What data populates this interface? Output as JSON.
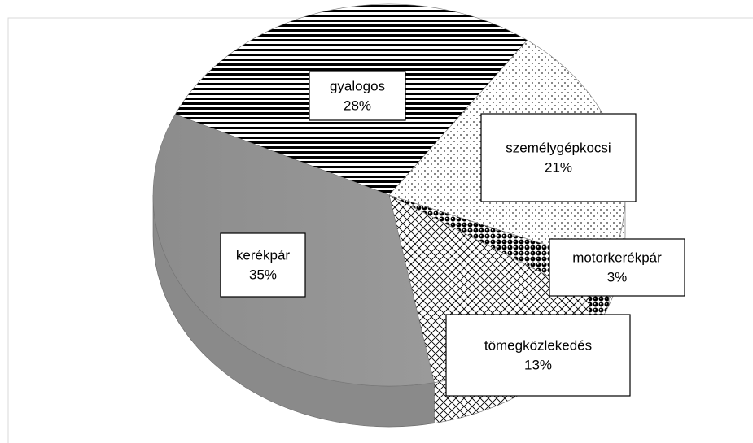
{
  "chart_data": {
    "type": "pie",
    "categories": [
      "gyalogos",
      "személygépkocsi",
      "motorkerékpár",
      "tömegközlekedés",
      "kerékpár"
    ],
    "values": [
      28,
      21,
      3,
      13,
      35
    ],
    "value_labels": [
      "28%",
      "21%",
      "3%",
      "13%",
      "35%"
    ]
  }
}
